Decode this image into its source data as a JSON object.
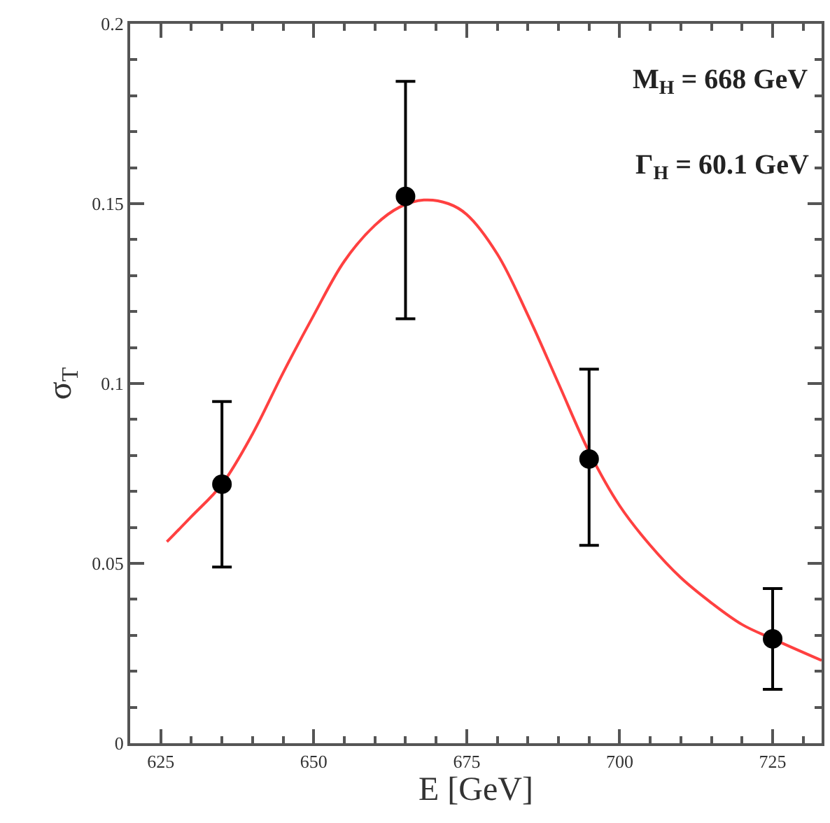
{
  "chart_data": {
    "type": "scatter",
    "xlabel": "E [GeV]",
    "ylabel": "σ$_{T}$",
    "xlim": [
      620,
      733
    ],
    "xticks": [
      625,
      650,
      675,
      700,
      725
    ],
    "ylim": [
      0,
      0.2
    ],
    "yticks": [
      0,
      0.05,
      0.1,
      0.15,
      0.2
    ],
    "annotations": [
      "M$_{H}$ = 668 GeV",
      "Γ$_{H}$ = 60.1 GeV"
    ],
    "series": [
      {
        "color": "#000000",
        "marker": "circle",
        "x": [
          635,
          665,
          695,
          725
        ],
        "values": [
          0.072,
          0.152,
          0.079,
          0.029
        ],
        "errors": [
          [
            0.049,
            0.095
          ],
          [
            0.118,
            0.184
          ],
          [
            0.055,
            0.104
          ],
          [
            0.015,
            0.043
          ]
        ]
      },
      {
        "type": "line",
        "color": "#ff4040",
        "marker": "none",
        "line_style": "solid",
        "x": [
          626,
          630,
          635,
          640,
          645,
          650,
          655,
          660,
          664,
          668,
          672,
          675,
          680,
          685,
          690,
          695,
          700,
          705,
          710,
          715,
          720,
          725,
          733
        ],
        "values": [
          0.056,
          0.063,
          0.072,
          0.086,
          0.103,
          0.119,
          0.134,
          0.144,
          0.149,
          0.151,
          0.15,
          0.147,
          0.136,
          0.119,
          0.1,
          0.081,
          0.066,
          0.055,
          0.046,
          0.039,
          0.033,
          0.029,
          0.023
        ]
      }
    ]
  }
}
